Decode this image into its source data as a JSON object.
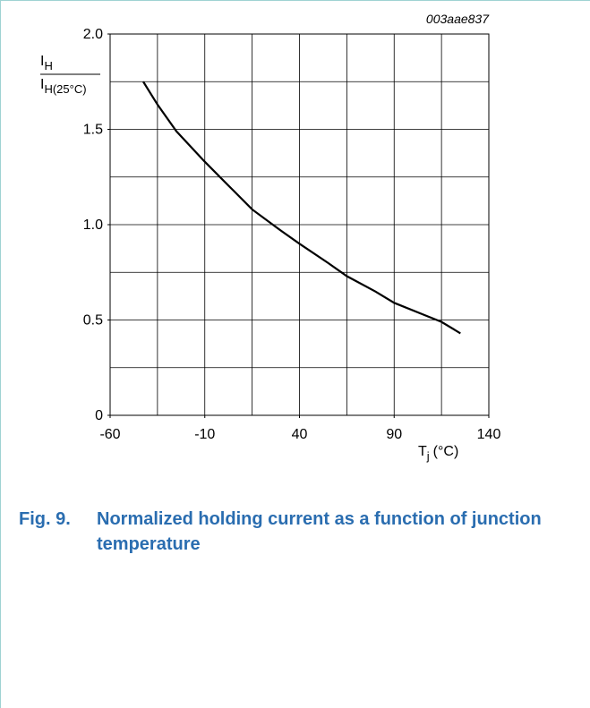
{
  "chart_data": {
    "type": "line",
    "code": "003aae837",
    "figure_number": "Fig. 9.",
    "title": "Normalized holding current as a function of junction temperature",
    "x_label": {
      "symbol": "T",
      "subscript": "j",
      "unit": "(°C)"
    },
    "y_label": {
      "numerator": {
        "symbol": "I",
        "subscript": "H"
      },
      "denominator": {
        "symbol": "I",
        "subscript": "H(25°C)"
      }
    },
    "x": [
      -42.5,
      -35,
      -25,
      -10,
      5,
      15,
      30,
      40,
      55,
      65,
      80,
      90,
      105,
      115,
      125
    ],
    "values": [
      1.75,
      1.63,
      1.49,
      1.33,
      1.18,
      1.08,
      0.97,
      0.9,
      0.8,
      0.73,
      0.65,
      0.59,
      0.53,
      0.49,
      0.43
    ],
    "color": "#000000",
    "xlim": [
      -60,
      140
    ],
    "ylim": [
      0,
      2
    ],
    "xticks": [
      -60,
      -10,
      40,
      90,
      140
    ],
    "yticks": [
      0,
      {
        "value": 0.5,
        "label": "0.5"
      },
      {
        "value": 1,
        "label": "1.0"
      },
      {
        "value": 1.5,
        "label": "1.5"
      },
      {
        "value": 2,
        "label": "2.0"
      }
    ],
    "xgrid": [
      -35,
      -10,
      15,
      40,
      65,
      90,
      115
    ],
    "ygrid": [
      0.25,
      0.5,
      0.75,
      1,
      1.25,
      1.5,
      1.75
    ],
    "grid": true
  }
}
